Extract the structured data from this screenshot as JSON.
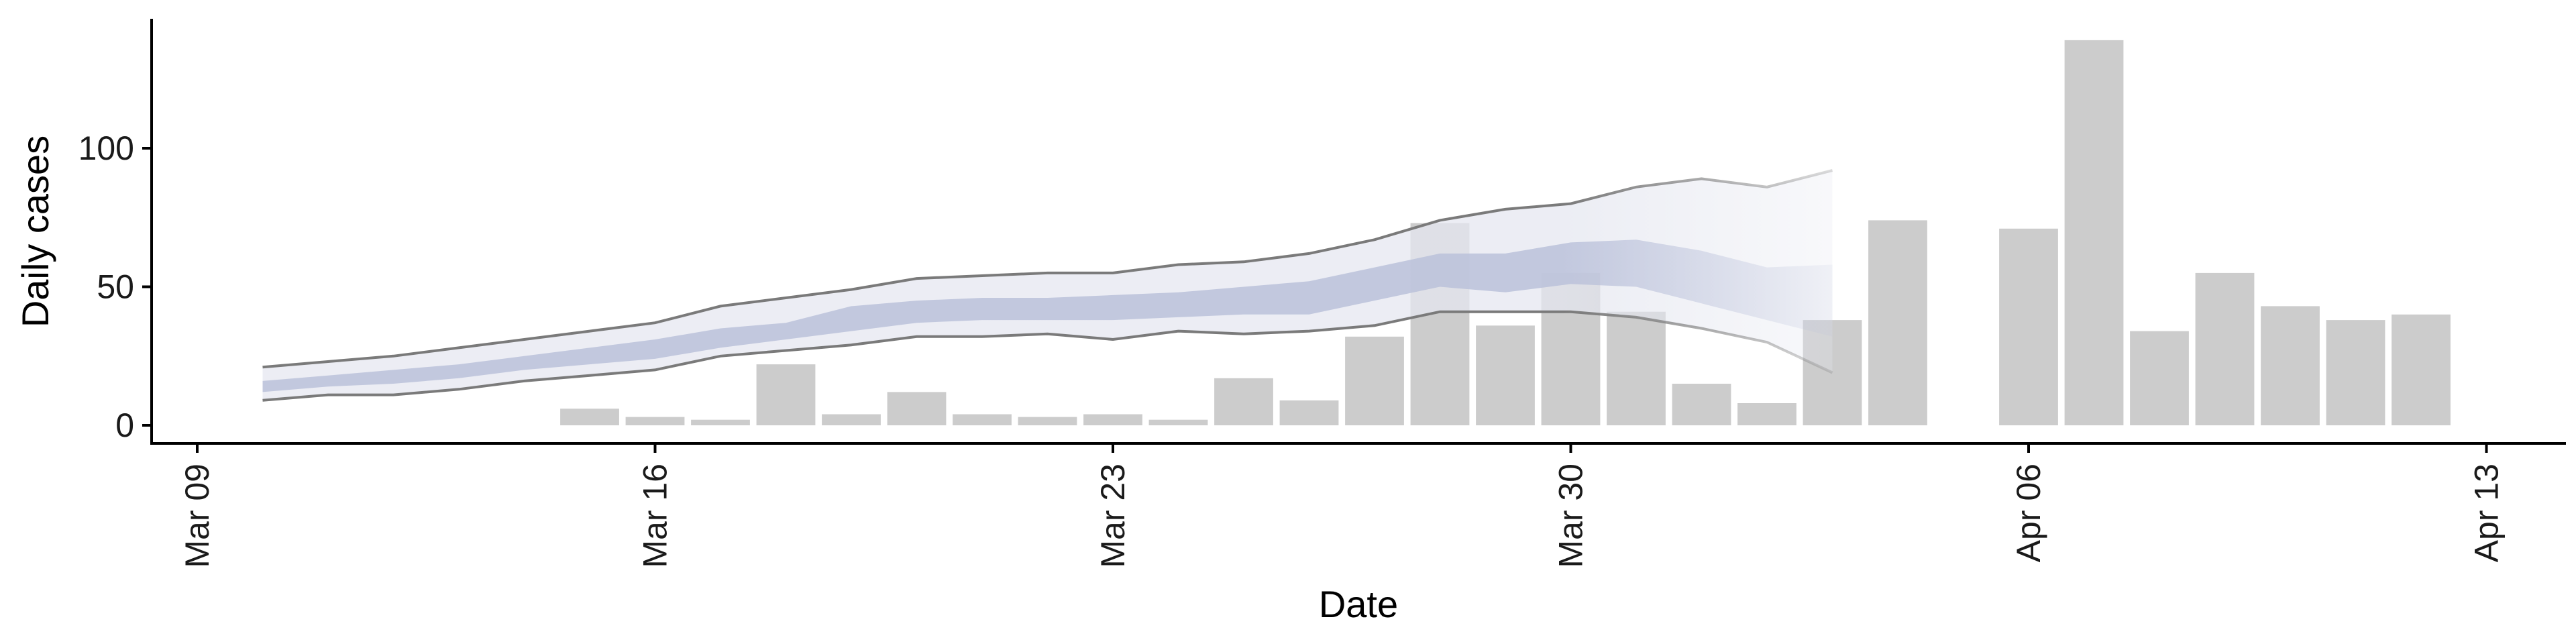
{
  "chart_data": {
    "type": "bar",
    "title": "",
    "xlabel": "Date",
    "ylabel": "Daily cases",
    "xlim": [
      "2020-03-09",
      "2020-04-13"
    ],
    "ylim": [
      -7,
      145
    ],
    "x_ticks": [
      "2020-03-09",
      "2020-03-16",
      "2020-03-23",
      "2020-03-30",
      "2020-04-06",
      "2020-04-13"
    ],
    "x_tick_labels": [
      "Mar 09",
      "Mar 16",
      "Mar 23",
      "Mar 30",
      "Apr 06",
      "Apr 13"
    ],
    "y_ticks": [
      0,
      50,
      100
    ],
    "y_tick_labels": [
      "0",
      "50",
      "100"
    ],
    "grid": false,
    "legend": "none",
    "colors": {
      "bars": "#cccccc",
      "band_outer": "#e5e7f0",
      "band_inner": "#b8bfd9",
      "bound_line": "#7a7a7a"
    },
    "bars": {
      "dates": [
        "2020-03-15",
        "2020-03-16",
        "2020-03-17",
        "2020-03-18",
        "2020-03-19",
        "2020-03-20",
        "2020-03-21",
        "2020-03-22",
        "2020-03-23",
        "2020-03-24",
        "2020-03-25",
        "2020-03-26",
        "2020-03-27",
        "2020-03-28",
        "2020-03-29",
        "2020-03-30",
        "2020-03-31",
        "2020-04-01",
        "2020-04-02",
        "2020-04-03",
        "2020-04-04",
        "2020-04-06",
        "2020-04-07",
        "2020-04-08",
        "2020-04-09",
        "2020-04-10",
        "2020-04-11",
        "2020-04-12"
      ],
      "values": [
        6,
        3,
        2,
        22,
        4,
        12,
        4,
        3,
        4,
        2,
        17,
        9,
        32,
        73,
        36,
        55,
        41,
        15,
        8,
        38,
        74,
        71,
        139,
        34,
        55,
        43,
        38,
        40
      ]
    },
    "estimate": {
      "dates": [
        "2020-03-10",
        "2020-03-11",
        "2020-03-12",
        "2020-03-13",
        "2020-03-14",
        "2020-03-15",
        "2020-03-16",
        "2020-03-17",
        "2020-03-18",
        "2020-03-19",
        "2020-03-20",
        "2020-03-21",
        "2020-03-22",
        "2020-03-23",
        "2020-03-24",
        "2020-03-25",
        "2020-03-26",
        "2020-03-27",
        "2020-03-28",
        "2020-03-29",
        "2020-03-30",
        "2020-03-31",
        "2020-04-01",
        "2020-04-02",
        "2020-04-03"
      ],
      "upper_90": [
        21,
        23,
        25,
        28,
        31,
        34,
        37,
        43,
        46,
        49,
        53,
        54,
        55,
        55,
        58,
        59,
        62,
        67,
        74,
        78,
        80,
        86,
        89,
        86,
        92
      ],
      "upper_50": [
        16,
        18,
        20,
        22,
        25,
        28,
        31,
        35,
        37,
        43,
        45,
        46,
        46,
        47,
        48,
        50,
        52,
        57,
        62,
        62,
        66,
        67,
        63,
        57,
        58
      ],
      "lower_50": [
        12,
        14,
        15,
        17,
        20,
        22,
        24,
        28,
        31,
        34,
        37,
        38,
        38,
        38,
        39,
        40,
        40,
        45,
        50,
        48,
        51,
        50,
        44,
        38,
        32
      ],
      "lower_90": [
        9,
        11,
        11,
        13,
        16,
        18,
        20,
        25,
        27,
        29,
        32,
        32,
        33,
        31,
        34,
        33,
        34,
        36,
        41,
        41,
        41,
        39,
        35,
        30,
        19
      ],
      "forecast_start": "2020-03-30"
    }
  }
}
